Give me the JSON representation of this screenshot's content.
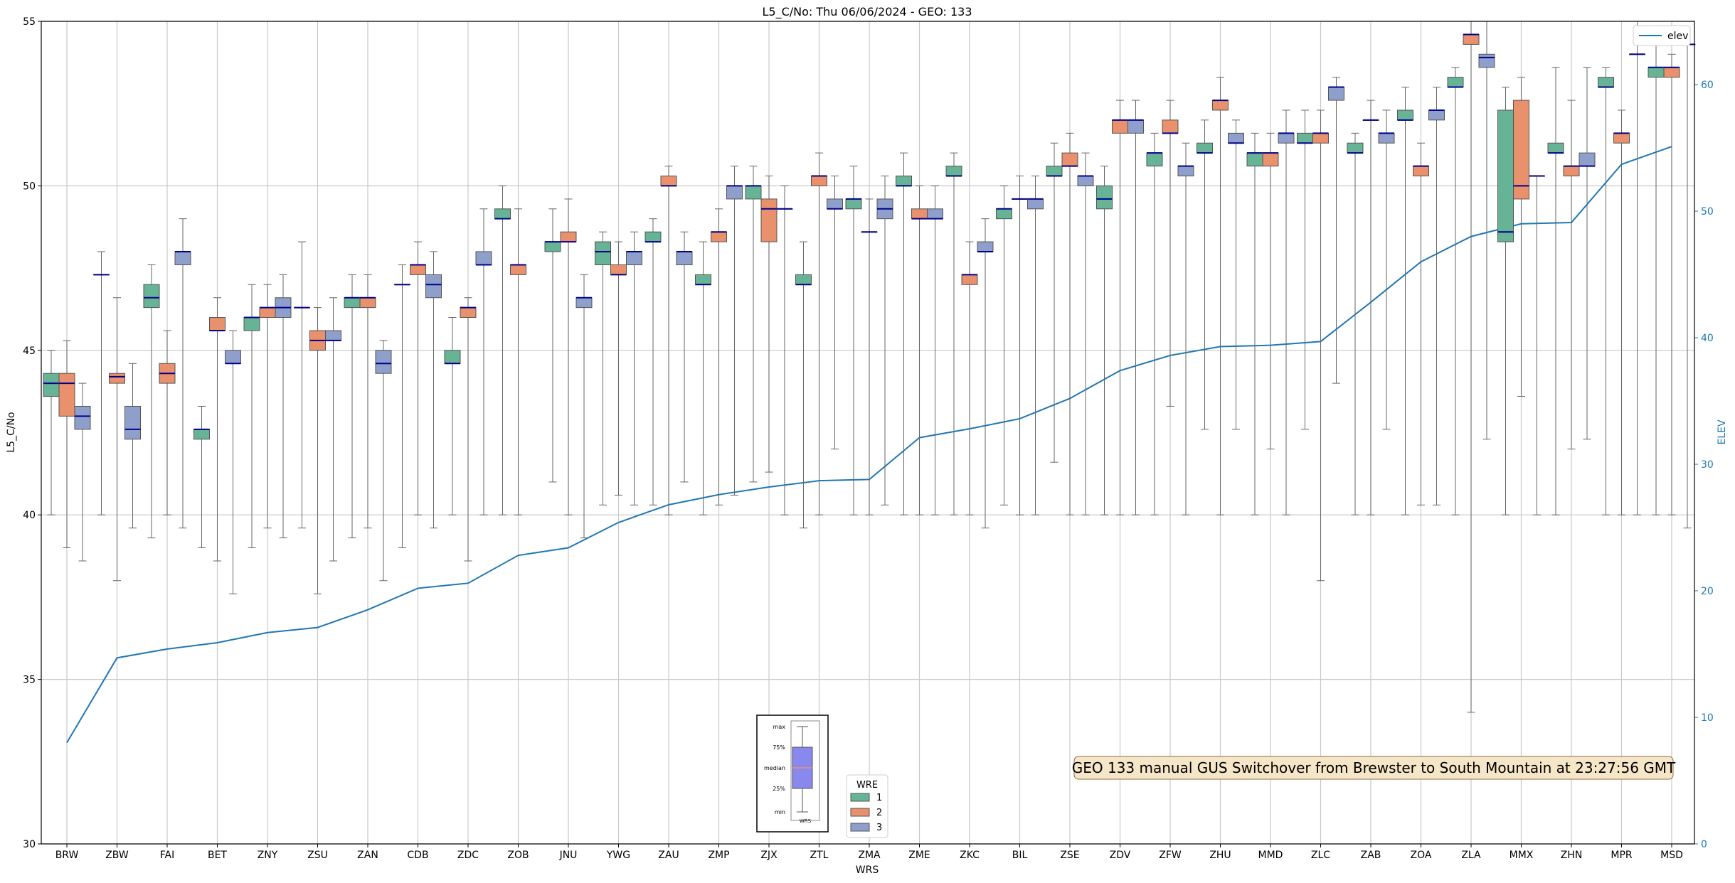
{
  "chart_data": {
    "type": "box",
    "title": "L5_C/No: Thu 06/06/2024 - GEO: 133",
    "xlabel": "WRS",
    "ylabel": "L5_C/No",
    "y2label": "ELEV",
    "ylim": [
      30,
      55
    ],
    "y2lim": [
      0,
      65
    ],
    "yticks": [
      30,
      35,
      40,
      45,
      50,
      55
    ],
    "y2ticks": [
      0,
      10,
      20,
      30,
      40,
      50,
      60
    ],
    "grid": true,
    "categories": [
      "BRW",
      "ZBW",
      "FAI",
      "BET",
      "ZNY",
      "ZSU",
      "ZAN",
      "CDB",
      "ZDC",
      "ZOB",
      "JNU",
      "YWG",
      "ZAU",
      "ZMP",
      "ZJX",
      "ZTL",
      "ZMA",
      "ZME",
      "ZKC",
      "BIL",
      "ZSE",
      "ZDV",
      "ZFW",
      "ZHU",
      "MMD",
      "ZLC",
      "ZAB",
      "ZOA",
      "ZLA",
      "MMX",
      "ZHN",
      "MPR",
      "MSD"
    ],
    "colors": {
      "1": "#66b396",
      "2": "#e8916c",
      "3": "#8f9fcb",
      "median": "#00008b",
      "elev": "#1f77b4",
      "whisker": "#555555"
    },
    "legend": {
      "title": "WRE",
      "labels": [
        "1",
        "2",
        "3"
      ],
      "position": "bottom-center"
    },
    "elev_legend": {
      "label": "elev",
      "position": "top-right"
    },
    "boxes": [
      {
        "wre": [
          "1",
          "2",
          "3"
        ],
        "stats": [
          [
            40,
            43.6,
            44,
            44.3,
            45
          ],
          [
            39,
            43,
            44,
            44.3,
            45.3
          ],
          [
            38.6,
            42.6,
            43,
            43.3,
            44
          ]
        ]
      },
      {
        "wre": [
          "1",
          "2",
          "3"
        ],
        "stats": [
          [
            40,
            47.3,
            47.3,
            47.3,
            48
          ],
          [
            38,
            44,
            44.2,
            44.3,
            46.6
          ],
          [
            39.6,
            42.3,
            42.6,
            43.3,
            44.6
          ]
        ]
      },
      {
        "wre": [
          "1",
          "2",
          "3"
        ],
        "stats": [
          [
            39.3,
            46.3,
            46.6,
            47,
            47.6
          ],
          [
            40,
            44,
            44.3,
            44.6,
            45.6
          ],
          [
            39.6,
            47.6,
            48,
            48,
            49
          ]
        ]
      },
      {
        "wre": [
          "1",
          "2",
          "3"
        ],
        "stats": [
          [
            39,
            42.3,
            42.6,
            42.6,
            43.3
          ],
          [
            38.6,
            45.6,
            45.6,
            46,
            46.6
          ],
          [
            37.6,
            44.6,
            44.6,
            45,
            45.6
          ]
        ]
      },
      {
        "wre": [
          "1",
          "2",
          "3"
        ],
        "stats": [
          [
            39,
            45.6,
            46,
            46,
            47
          ],
          [
            39.6,
            46,
            46.3,
            46.3,
            47
          ],
          [
            39.3,
            46,
            46.3,
            46.6,
            47.3
          ]
        ]
      },
      {
        "wre": [
          "1",
          "2",
          "3"
        ],
        "stats": [
          [
            39.6,
            46.3,
            46.3,
            46.3,
            48.3
          ],
          [
            37.6,
            45,
            45.3,
            45.6,
            46.3
          ],
          [
            38.6,
            45.3,
            45.3,
            45.6,
            46.6
          ]
        ]
      },
      {
        "wre": [
          "1",
          "2",
          "3"
        ],
        "stats": [
          [
            39.3,
            46.3,
            46.6,
            46.6,
            47.3
          ],
          [
            39.6,
            46.3,
            46.6,
            46.6,
            47.3
          ],
          [
            38,
            44.3,
            44.6,
            45,
            45.3
          ]
        ]
      },
      {
        "wre": [
          "1",
          "2",
          "3"
        ],
        "stats": [
          [
            39,
            47,
            47,
            47,
            47.6
          ],
          [
            40,
            47.3,
            47.6,
            47.6,
            48.3
          ],
          [
            39.6,
            46.6,
            47,
            47.3,
            48
          ]
        ]
      },
      {
        "wre": [
          "1",
          "2",
          "3"
        ],
        "stats": [
          [
            40,
            44.6,
            44.6,
            45,
            46
          ],
          [
            38.6,
            46,
            46.3,
            46.3,
            46.6
          ],
          [
            40,
            47.6,
            47.6,
            48,
            49.3
          ]
        ]
      },
      {
        "wre": [
          "1",
          "2",
          "3"
        ],
        "stats": [
          [
            40,
            49,
            49,
            49.3,
            50
          ],
          [
            40,
            47.3,
            47.6,
            47.6,
            49.3
          ],
          [
            null,
            null,
            null,
            null,
            null
          ]
        ]
      },
      {
        "wre": [
          "1",
          "2",
          "3"
        ],
        "stats": [
          [
            41,
            48,
            48.3,
            48.3,
            49.3
          ],
          [
            40,
            48.3,
            48.3,
            48.6,
            49.6
          ],
          [
            39.3,
            46.3,
            46.6,
            46.6,
            47.3
          ]
        ]
      },
      {
        "wre": [
          "1",
          "2",
          "3"
        ],
        "stats": [
          [
            40.3,
            47.6,
            48,
            48.3,
            48.6
          ],
          [
            40.6,
            47.3,
            47.3,
            47.6,
            48.3
          ],
          [
            40.3,
            47.6,
            48,
            48,
            48.6
          ]
        ]
      },
      {
        "wre": [
          "1",
          "2",
          "3"
        ],
        "stats": [
          [
            40.3,
            48.3,
            48.3,
            48.6,
            49
          ],
          [
            40,
            50,
            50,
            50.3,
            50.6
          ],
          [
            41,
            47.6,
            48,
            48,
            48.6
          ]
        ]
      },
      {
        "wre": [
          "1",
          "2",
          "3"
        ],
        "stats": [
          [
            40,
            47,
            47,
            47.3,
            48.3
          ],
          [
            40.3,
            48.3,
            48.6,
            48.6,
            49.3
          ],
          [
            40.6,
            49.6,
            50,
            50,
            50.6
          ]
        ]
      },
      {
        "wre": [
          "1",
          "2",
          "3"
        ],
        "stats": [
          [
            41,
            49.6,
            50,
            50,
            50.6
          ],
          [
            41.3,
            48.3,
            49.3,
            49.6,
            50.3
          ],
          [
            40,
            49.3,
            49.3,
            49.3,
            50
          ]
        ]
      },
      {
        "wre": [
          "1",
          "2",
          "3"
        ],
        "stats": [
          [
            39.6,
            47,
            47,
            47.3,
            48.3
          ],
          [
            40,
            50,
            50.3,
            50.3,
            51
          ],
          [
            42,
            49.3,
            49.3,
            49.6,
            50.3
          ]
        ]
      },
      {
        "wre": [
          "1",
          "2",
          "3"
        ],
        "stats": [
          [
            40,
            49.3,
            49.6,
            49.6,
            50.6
          ],
          [
            40,
            48.6,
            48.6,
            48.6,
            49.6
          ],
          [
            40.3,
            49,
            49.3,
            49.6,
            50.3
          ]
        ]
      },
      {
        "wre": [
          "1",
          "2",
          "3"
        ],
        "stats": [
          [
            40,
            50,
            50,
            50.3,
            51
          ],
          [
            40,
            49,
            49,
            49.3,
            50
          ],
          [
            40,
            49,
            49,
            49.3,
            50
          ]
        ]
      },
      {
        "wre": [
          "1",
          "2",
          "3"
        ],
        "stats": [
          [
            40,
            50.3,
            50.3,
            50.6,
            51
          ],
          [
            40,
            47,
            47.3,
            47.3,
            48.3
          ],
          [
            39.6,
            48,
            48,
            48.3,
            49
          ]
        ]
      },
      {
        "wre": [
          "1",
          "2",
          "3"
        ],
        "stats": [
          [
            40.3,
            49,
            49.3,
            49.3,
            50
          ],
          [
            40,
            49.6,
            49.6,
            49.6,
            50.3
          ],
          [
            40,
            49.3,
            49.6,
            49.6,
            50.3
          ]
        ]
      },
      {
        "wre": [
          "1",
          "2",
          "3"
        ],
        "stats": [
          [
            41.6,
            50.3,
            50.3,
            50.6,
            51.3
          ],
          [
            40,
            50.6,
            50.6,
            51,
            51.6
          ],
          [
            40,
            50,
            50.3,
            50.3,
            51
          ]
        ]
      },
      {
        "wre": [
          "1",
          "2",
          "3"
        ],
        "stats": [
          [
            40,
            49.3,
            49.6,
            50,
            50.6
          ],
          [
            40,
            51.6,
            52,
            52,
            52.6
          ],
          [
            40,
            51.6,
            52,
            52,
            52.6
          ]
        ]
      },
      {
        "wre": [
          "1",
          "2",
          "3"
        ],
        "stats": [
          [
            40,
            50.6,
            51,
            51,
            51.6
          ],
          [
            43.3,
            51.6,
            51.6,
            52,
            52.6
          ],
          [
            40,
            50.3,
            50.6,
            50.6,
            51.3
          ]
        ]
      },
      {
        "wre": [
          "1",
          "2",
          "3"
        ],
        "stats": [
          [
            42.6,
            51,
            51,
            51.3,
            52
          ],
          [
            40,
            52.3,
            52.6,
            52.6,
            53.3
          ],
          [
            42.6,
            51.3,
            51.3,
            51.6,
            52
          ]
        ]
      },
      {
        "wre": [
          "1",
          "2",
          "3"
        ],
        "stats": [
          [
            40,
            50.6,
            51,
            51,
            51.6
          ],
          [
            42,
            50.6,
            51,
            51,
            51.6
          ],
          [
            40,
            51.3,
            51.6,
            51.6,
            52.3
          ]
        ]
      },
      {
        "wre": [
          "1",
          "2",
          "3"
        ],
        "stats": [
          [
            42.6,
            51.3,
            51.3,
            51.6,
            52.3
          ],
          [
            38,
            51.3,
            51.6,
            51.6,
            52.3
          ],
          [
            44,
            52.6,
            53,
            53,
            53.3
          ]
        ]
      },
      {
        "wre": [
          "1",
          "2",
          "3"
        ],
        "stats": [
          [
            40,
            51,
            51,
            51.3,
            51.6
          ],
          [
            40,
            52,
            52,
            52,
            52.6
          ],
          [
            42.6,
            51.3,
            51.6,
            51.6,
            52.3
          ]
        ]
      },
      {
        "wre": [
          "1",
          "2",
          "3"
        ],
        "stats": [
          [
            40,
            52,
            52,
            52.3,
            53
          ],
          [
            40.3,
            50.3,
            50.6,
            50.6,
            51.3
          ],
          [
            40.3,
            52,
            52.3,
            52.3,
            53
          ]
        ]
      },
      {
        "wre": [
          "1",
          "2",
          "3"
        ],
        "stats": [
          [
            40,
            53,
            53,
            53.3,
            53.6
          ],
          [
            34,
            54.3,
            54.6,
            54.6,
            55
          ],
          [
            42.3,
            53.6,
            53.9,
            54,
            55
          ]
        ]
      },
      {
        "wre": [
          "1",
          "2",
          "3"
        ],
        "stats": [
          [
            40,
            48.3,
            48.6,
            52.3,
            53
          ],
          [
            43.6,
            49.6,
            50,
            52.6,
            53.3
          ],
          [
            40,
            50.3,
            50.3,
            50.3,
            50.3
          ]
        ]
      },
      {
        "wre": [
          "1",
          "2",
          "3"
        ],
        "stats": [
          [
            40,
            51,
            51,
            51.3,
            53.6
          ],
          [
            42,
            50.3,
            50.6,
            50.6,
            52.6
          ],
          [
            42.3,
            50.6,
            50.6,
            51,
            53.6
          ]
        ]
      },
      {
        "wre": [
          "1",
          "2",
          "3"
        ],
        "stats": [
          [
            40,
            53,
            53,
            53.3,
            53.6
          ],
          [
            40,
            51.3,
            51.6,
            51.6,
            52.3
          ],
          [
            40,
            54,
            54,
            54,
            55
          ]
        ]
      },
      {
        "wre": [
          "1",
          "2",
          "3"
        ],
        "stats": [
          [
            40,
            53.3,
            53.6,
            53.6,
            54.3
          ],
          [
            40,
            53.3,
            53.6,
            53.6,
            54
          ],
          [
            39.6,
            54.3,
            54.3,
            54.3,
            54.3
          ]
        ]
      }
    ],
    "elev": [
      8,
      14.7,
      15.4,
      15.9,
      16.7,
      17.1,
      18.5,
      20.2,
      20.6,
      22.8,
      23.4,
      25.4,
      26.8,
      27.6,
      28.2,
      28.7,
      28.8,
      32.1,
      32.8,
      33.6,
      35.2,
      37.4,
      38.6,
      39.3,
      39.4,
      39.7,
      42.8,
      46,
      48,
      49,
      49.1,
      53.7,
      55.1
    ],
    "annotation": "GEO 133 manual GUS Switchover from Brewster to South Mountain at 23:27:56 GMT",
    "inset_labels": [
      "max",
      "75%",
      "median",
      "25%",
      "min",
      "WRS"
    ]
  }
}
